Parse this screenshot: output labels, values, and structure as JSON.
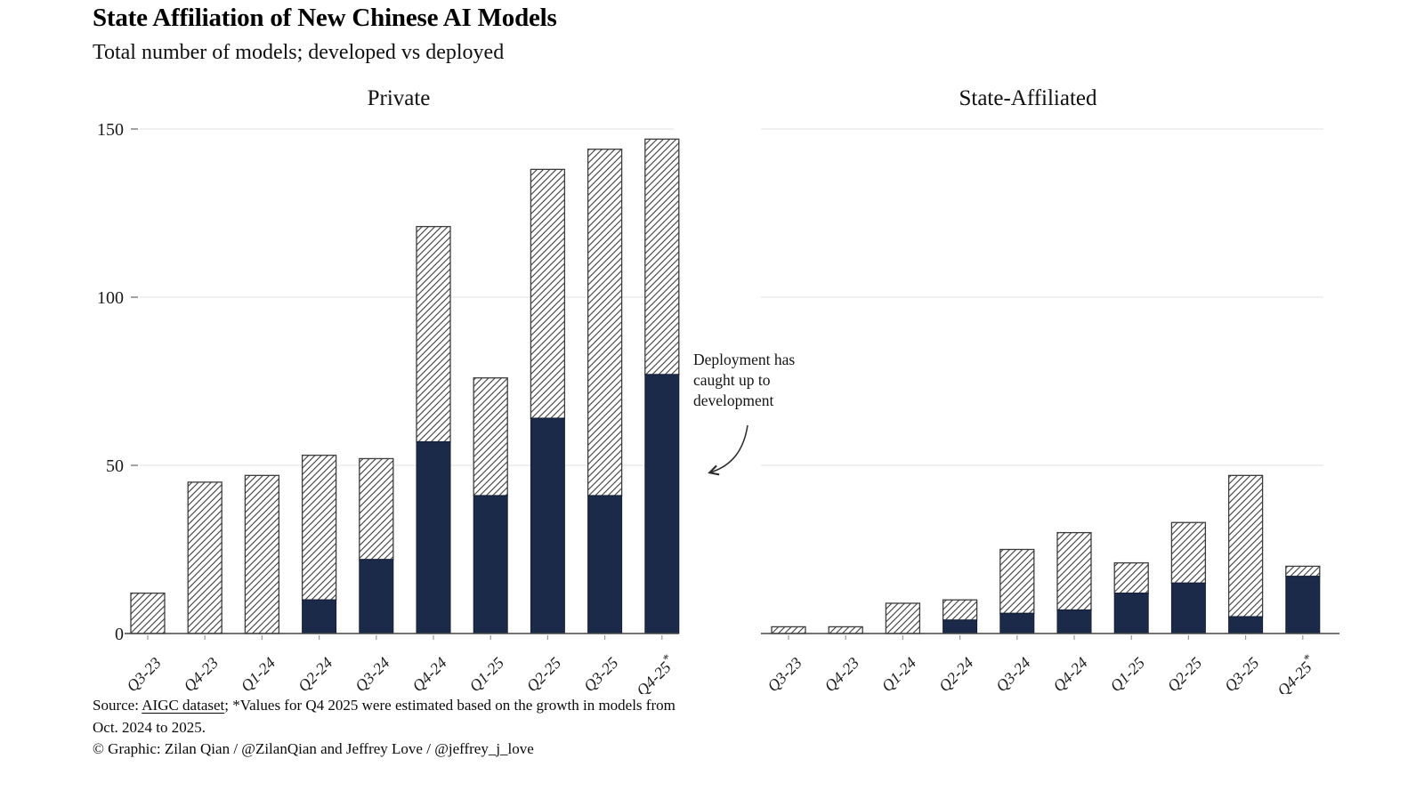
{
  "header": {
    "title": "State Affiliation of New Chinese AI Models",
    "subtitle": "Total number of models; developed vs deployed"
  },
  "annotation": {
    "line1": "Deployment has",
    "line2": "caught up to",
    "line3": "development"
  },
  "footer": {
    "source_prefix": "Source: ",
    "source_link": "AIGC dataset",
    "source_suffix": "; *Values for Q4 2025 were estimated based on the growth in models from",
    "source_line2": "Oct. 2024 to 2025.",
    "credit": "© Graphic: Zilan Qian / @ZilanQian and Jeffrey Love / @jeffrey_j_love"
  },
  "colors": {
    "deployed_fill": "#1c2a4a",
    "deployed_stroke": "#141f38",
    "bar_border": "#3d3d3d",
    "hatch_line": "#2f2f2f",
    "gridline": "#e8e8e8",
    "axis": "#454545",
    "tick": "#9a9a9a",
    "ydash": "#6f6f6f"
  },
  "chart_data": [
    {
      "type": "bar",
      "stacked": true,
      "title": "Private",
      "categories": [
        "Q3-23",
        "Q4-23",
        "Q1-24",
        "Q2-24",
        "Q3-24",
        "Q4-24",
        "Q1-25",
        "Q2-25",
        "Q3-25",
        "Q4-25*"
      ],
      "series": [
        {
          "name": "deployed",
          "style": "solid-navy",
          "values": [
            0,
            0,
            0,
            10,
            22,
            57,
            41,
            64,
            41,
            77
          ]
        },
        {
          "name": "developed, not yet deployed",
          "style": "hatched",
          "values": [
            12,
            45,
            47,
            43,
            30,
            64,
            35,
            74,
            103,
            70
          ]
        }
      ],
      "stack_totals": [
        12,
        45,
        47,
        53,
        52,
        121,
        76,
        138,
        144,
        147
      ],
      "ylim": [
        0,
        150
      ],
      "yticks": [
        0,
        50,
        100,
        150
      ],
      "grid": "horizontal",
      "y_axis_labels_visible": true
    },
    {
      "type": "bar",
      "stacked": true,
      "title": "State-Affiliated",
      "categories": [
        "Q3-23",
        "Q4-23",
        "Q1-24",
        "Q2-24",
        "Q3-24",
        "Q4-24",
        "Q1-25",
        "Q2-25",
        "Q3-25",
        "Q4-25*"
      ],
      "series": [
        {
          "name": "deployed",
          "style": "solid-navy",
          "values": [
            0,
            0,
            0,
            4,
            6,
            7,
            12,
            15,
            5,
            17
          ]
        },
        {
          "name": "developed, not yet deployed",
          "style": "hatched",
          "values": [
            2,
            2,
            9,
            6,
            19,
            23,
            9,
            18,
            42,
            3
          ]
        }
      ],
      "stack_totals": [
        2,
        2,
        9,
        10,
        25,
        30,
        21,
        33,
        47,
        20
      ],
      "ylim": [
        0,
        150
      ],
      "yticks": [
        0,
        50,
        100,
        150
      ],
      "grid": "horizontal",
      "y_axis_labels_visible": false
    }
  ]
}
